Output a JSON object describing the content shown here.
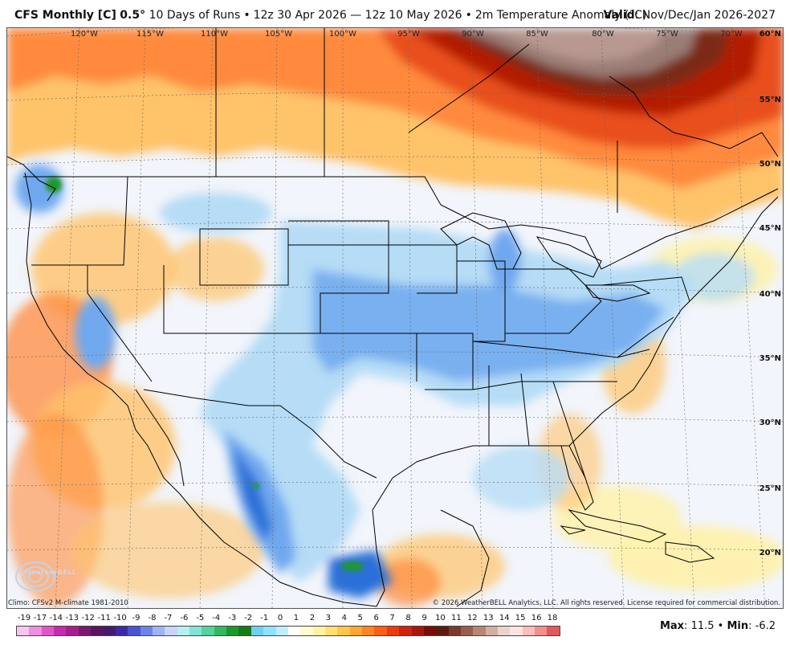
{
  "header": {
    "model": "CFS Monthly [C]",
    "resolution": "0.5°",
    "runs": "10 Days of Runs",
    "init_range": "12z 30 Apr 2026 — 12z 10 May 2026",
    "field": "2m Temperature Anomaly (°C)",
    "valid_label": "Valid",
    "valid_value": ": Nov/Dec/Jan 2026-2027"
  },
  "map": {
    "longitude_labels": [
      "120°W",
      "115°W",
      "110°W",
      "105°W",
      "100°W",
      "95°W",
      "90°W",
      "85°W",
      "80°W",
      "75°W",
      "70°W"
    ],
    "latitude_labels": [
      "60°N",
      "55°N",
      "50°N",
      "45°N",
      "40°N",
      "35°N",
      "30°N",
      "25°N",
      "20°N"
    ],
    "anomaly_colors": {
      "cold_strong": "#2a6fd8",
      "cold": "#6fa8ef",
      "cool": "#b6dcf6",
      "neutral": "#f2f5fb",
      "warm_light": "#fff1a8",
      "warm": "#ffc36a",
      "warmer": "#ff8a3c",
      "hot": "#e8501c",
      "very_hot": "#b41a06",
      "extreme": "#7a2a14",
      "max_gray": "#9a7d76"
    }
  },
  "footer": {
    "climo": "Climo: CFSv2 M-climate 1981-2010",
    "copyright": "© 2026 WeatherBELL Analytics, LLC. All rights reserved. License required for commercial distribution.",
    "logo": "WeatherBELL"
  },
  "legend": {
    "labels": [
      "-19",
      "-17",
      "-14",
      "-13",
      "-12",
      "-11",
      "-10",
      "-9",
      "-8",
      "-7",
      "-6",
      "-5",
      "-4",
      "-3",
      "-2",
      "-1",
      "0",
      "1",
      "2",
      "3",
      "4",
      "5",
      "6",
      "7",
      "8",
      "9",
      "10",
      "11",
      "12",
      "13",
      "14",
      "15",
      "16",
      "18"
    ],
    "colors": [
      "#f7c6ef",
      "#ee8fe0",
      "#e055c9",
      "#c72ab0",
      "#a71d8e",
      "#7b1872",
      "#5c1460",
      "#451a6e",
      "#3b2aa6",
      "#4a52d6",
      "#6d84ec",
      "#9fb4f4",
      "#c8d4fa",
      "#b3f2f0",
      "#7fe6d6",
      "#54d39c",
      "#36b860",
      "#1a9a2a",
      "#157a1c",
      "#6fd0f0",
      "#8ee4ff",
      "#bfeeff",
      "#ffffff",
      "#fffbd0",
      "#fff3a0",
      "#ffe070",
      "#ffc64a",
      "#ffa634",
      "#ff8424",
      "#ff5e14",
      "#ee3a0c",
      "#cf220a",
      "#aa1608",
      "#7a0d06",
      "#5c1a10",
      "#7a3a2c",
      "#9a5e4e",
      "#b88676",
      "#d4aea2",
      "#ecd2ca",
      "#ffe2e2",
      "#ffbcbc",
      "#f38e8e",
      "#e05a5a"
    ]
  },
  "stats": {
    "max_label": "Max",
    "max_value": "11.5",
    "min_label": "Min",
    "min_value": "-6.2"
  }
}
